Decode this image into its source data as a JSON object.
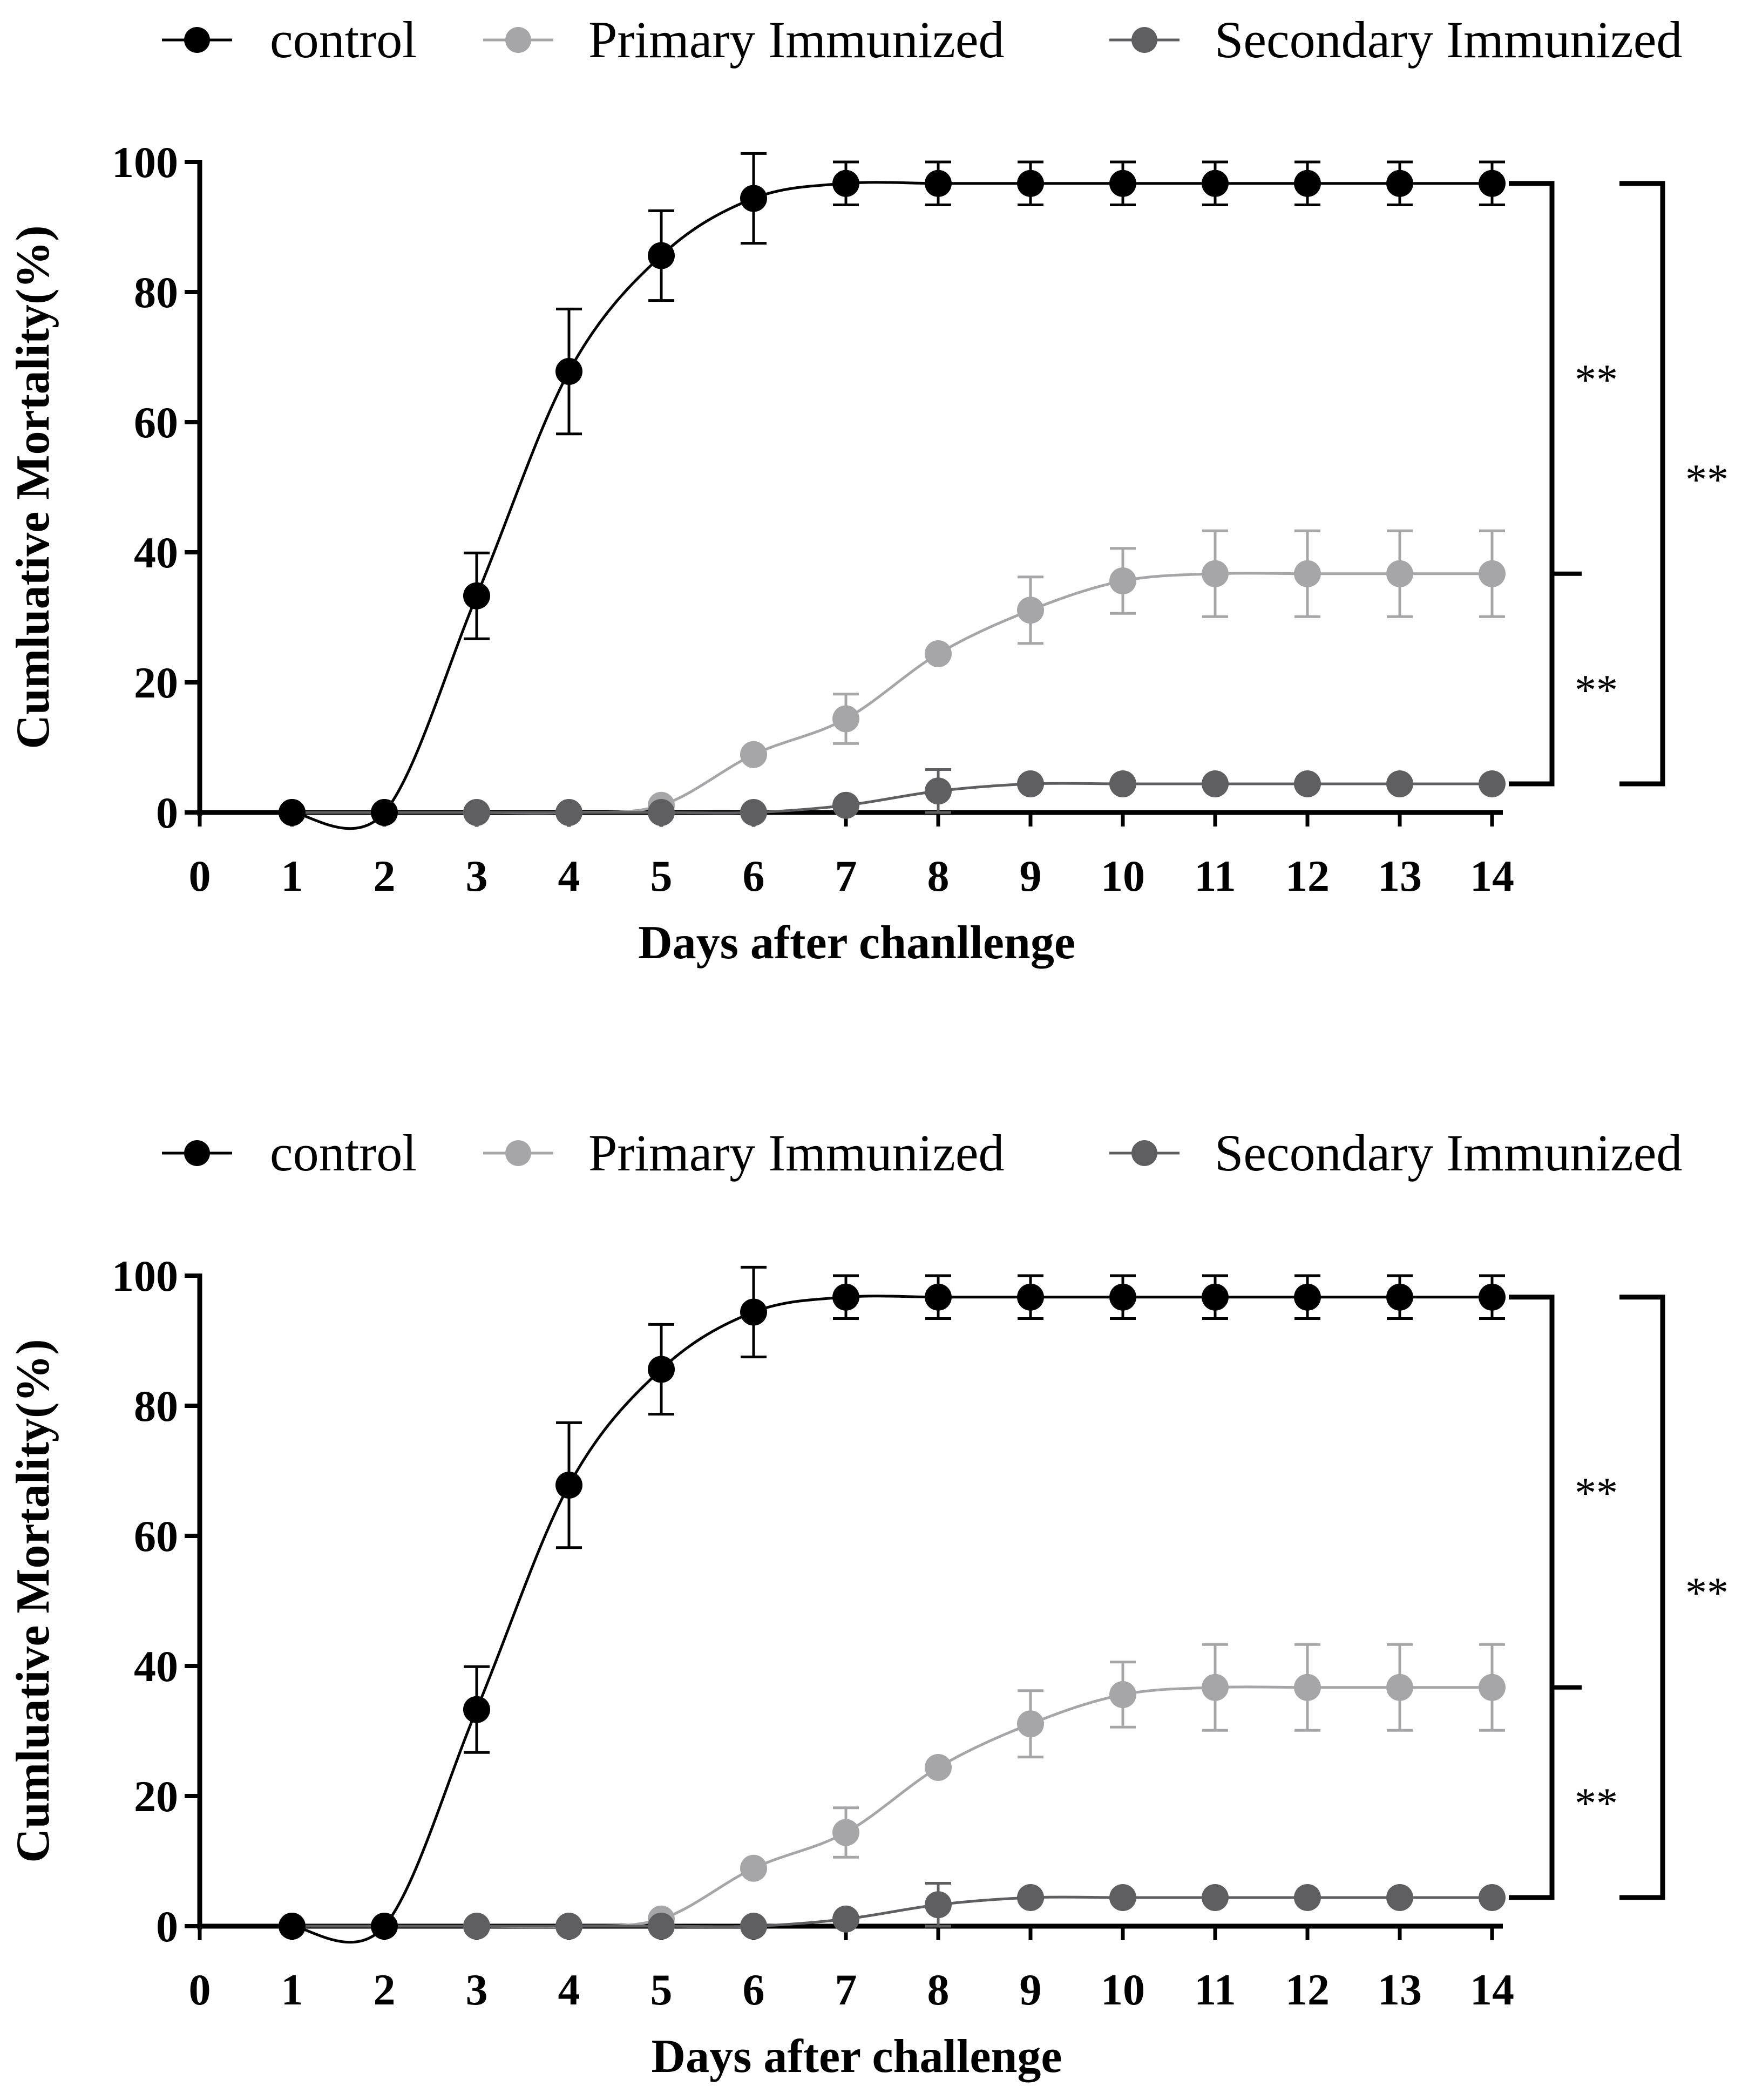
{
  "chart_data": [
    {
      "type": "line",
      "title": "",
      "xlabel": "Days after chanllenge",
      "ylabel": "Cumluative Mortality(%)",
      "x": [
        1,
        2,
        3,
        4,
        5,
        6,
        7,
        8,
        9,
        10,
        11,
        12,
        13,
        14
      ],
      "xticks": [
        0,
        1,
        2,
        3,
        4,
        5,
        6,
        7,
        8,
        9,
        10,
        11,
        12,
        13,
        14
      ],
      "yticks": [
        0,
        20,
        40,
        60,
        80,
        100
      ],
      "xlim": [
        0,
        14
      ],
      "ylim": [
        0,
        100
      ],
      "legend_position": "top",
      "series": [
        {
          "name": "control",
          "color": "#000000",
          "values": [
            0,
            0,
            33.3,
            67.8,
            85.6,
            94.4,
            96.7,
            96.7,
            96.7,
            96.7,
            96.7,
            96.7,
            96.7,
            96.7
          ],
          "errors": [
            0,
            0,
            6.6,
            9.6,
            6.9,
            6.9,
            3.3,
            3.3,
            3.3,
            3.3,
            3.3,
            3.3,
            3.3,
            3.3
          ]
        },
        {
          "name": "Primary Immunized",
          "color": "#a6a6a8",
          "values": [
            0,
            0,
            0,
            0,
            1.1,
            8.9,
            14.4,
            24.4,
            31.1,
            35.6,
            36.7,
            36.7,
            36.7,
            36.7
          ],
          "errors": [
            0,
            0,
            0,
            0,
            0,
            0,
            3.8,
            0,
            5.1,
            5.0,
            6.6,
            6.6,
            6.6,
            6.6
          ]
        },
        {
          "name": "Secondary  Immunized",
          "color": "#5f5f61",
          "values": [
            0,
            0,
            0,
            0,
            0,
            0,
            1.1,
            3.3,
            4.4,
            4.4,
            4.4,
            4.4,
            4.4,
            4.4
          ],
          "errors": [
            0,
            0,
            0,
            0,
            0,
            0,
            0,
            3.3,
            0,
            0,
            0,
            0,
            0,
            0
          ]
        }
      ],
      "significance": [
        {
          "from": "control",
          "to": "Primary Immunized",
          "label": "**"
        },
        {
          "from": "Primary Immunized",
          "to": "Secondary  Immunized",
          "label": "**"
        },
        {
          "from": "control",
          "to": "Secondary  Immunized",
          "label": "**"
        }
      ]
    },
    {
      "type": "line",
      "title": "",
      "xlabel": "Days after challenge",
      "ylabel": "Cumluative Mortality(%)",
      "x": [
        1,
        2,
        3,
        4,
        5,
        6,
        7,
        8,
        9,
        10,
        11,
        12,
        13,
        14
      ],
      "xticks": [
        0,
        1,
        2,
        3,
        4,
        5,
        6,
        7,
        8,
        9,
        10,
        11,
        12,
        13,
        14
      ],
      "yticks": [
        0,
        20,
        40,
        60,
        80,
        100
      ],
      "xlim": [
        0,
        14
      ],
      "ylim": [
        0,
        100
      ],
      "legend_position": "top",
      "series": [
        {
          "name": "control",
          "color": "#000000",
          "values": [
            0,
            0,
            33.3,
            67.8,
            85.6,
            94.4,
            96.7,
            96.7,
            96.7,
            96.7,
            96.7,
            96.7,
            96.7,
            96.7
          ],
          "errors": [
            0,
            0,
            6.6,
            9.6,
            6.9,
            6.9,
            3.3,
            3.3,
            3.3,
            3.3,
            3.3,
            3.3,
            3.3,
            3.3
          ]
        },
        {
          "name": "Primary Immunized",
          "color": "#a6a6a8",
          "values": [
            0,
            0,
            0,
            0,
            1.1,
            8.9,
            14.4,
            24.4,
            31.1,
            35.6,
            36.7,
            36.7,
            36.7,
            36.7
          ],
          "errors": [
            0,
            0,
            0,
            0,
            0,
            0,
            3.8,
            0,
            5.1,
            5.0,
            6.6,
            6.6,
            6.6,
            6.6
          ]
        },
        {
          "name": "Secondary  Immunized",
          "color": "#5f5f61",
          "values": [
            0,
            0,
            0,
            0,
            0,
            0,
            1.1,
            3.3,
            4.4,
            4.4,
            4.4,
            4.4,
            4.4,
            4.4
          ],
          "errors": [
            0,
            0,
            0,
            0,
            0,
            0,
            0,
            3.3,
            0,
            0,
            0,
            0,
            0,
            0
          ]
        }
      ],
      "significance": [
        {
          "from": "control",
          "to": "Primary Immunized",
          "label": "**"
        },
        {
          "from": "Primary Immunized",
          "to": "Secondary  Immunized",
          "label": "**"
        },
        {
          "from": "control",
          "to": "Secondary  Immunized",
          "label": "**"
        }
      ]
    }
  ]
}
